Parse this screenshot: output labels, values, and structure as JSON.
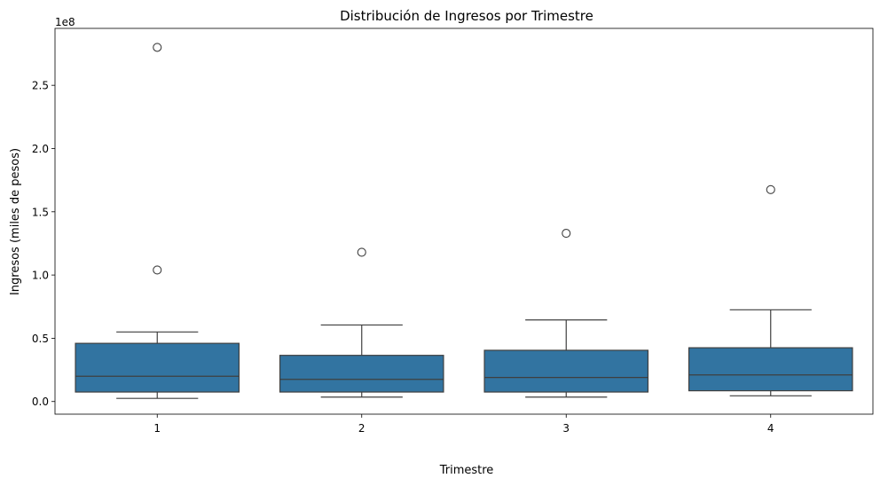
{
  "chart_data": {
    "type": "box",
    "title": "Distribución de Ingresos por Trimestre",
    "xlabel": "Trimestre",
    "ylabel": "Ingresos (miles de pesos)",
    "y_offset_label": "1e8",
    "ylim": [
      -10000000,
      295000000
    ],
    "yticks": [
      0,
      50000000,
      100000000,
      150000000,
      200000000,
      250000000
    ],
    "ytick_labels": [
      "0.0",
      "0.5",
      "1.0",
      "1.5",
      "2.0",
      "2.5"
    ],
    "categories": [
      "1",
      "2",
      "3",
      "4"
    ],
    "box_color": "#3274a1",
    "line_color": "#3f3f3f",
    "grid": false,
    "boxes": [
      {
        "category": "1",
        "whisker_low": 2500000,
        "q1": 7500000,
        "median": 20000000,
        "q3": 46000000,
        "whisker_high": 55000000,
        "outliers": [
          104000000,
          280000000
        ]
      },
      {
        "category": "2",
        "whisker_low": 3500000,
        "q1": 7500000,
        "median": 17500000,
        "q3": 36500000,
        "whisker_high": 60500000,
        "outliers": [
          118000000
        ]
      },
      {
        "category": "3",
        "whisker_low": 3500000,
        "q1": 7500000,
        "median": 19000000,
        "q3": 40500000,
        "whisker_high": 64500000,
        "outliers": [
          133000000
        ]
      },
      {
        "category": "4",
        "whisker_low": 4500000,
        "q1": 8500000,
        "median": 21000000,
        "q3": 42500000,
        "whisker_high": 72500000,
        "outliers": [
          167500000
        ]
      }
    ]
  }
}
